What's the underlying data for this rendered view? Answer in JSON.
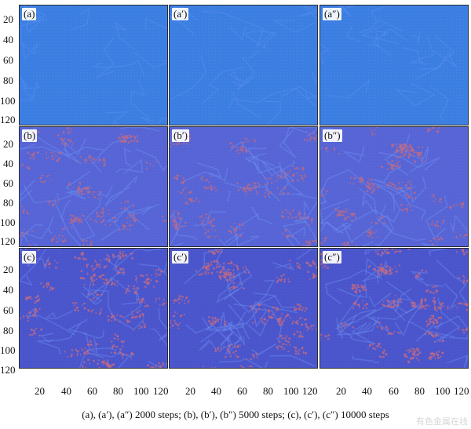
{
  "figure": {
    "panels": [
      {
        "label": "(a)",
        "row": 0,
        "col": 0
      },
      {
        "label": "(a′)",
        "row": 0,
        "col": 1
      },
      {
        "label": "(a″)",
        "row": 0,
        "col": 2
      },
      {
        "label": "(b)",
        "row": 1,
        "col": 0
      },
      {
        "label": "(b′)",
        "row": 1,
        "col": 1
      },
      {
        "label": "(b″)",
        "row": 1,
        "col": 2
      },
      {
        "label": "(c)",
        "row": 2,
        "col": 0
      },
      {
        "label": "(c′)",
        "row": 2,
        "col": 1
      },
      {
        "label": "(c″)",
        "row": 2,
        "col": 2
      }
    ],
    "y_ticks": [
      "20",
      "40",
      "60",
      "80",
      "100",
      "120"
    ],
    "x_ticks": [
      "20",
      "40",
      "60",
      "80",
      "100",
      "120"
    ],
    "caption": "(a), (a′), (a″) 2000 steps; (b), (b′), (b″) 5000 steps; (c), (c′), (c″) 10000 steps",
    "watermark": "有色金属在线"
  },
  "colors": {
    "row_a_background": "#3d82e6",
    "row_b_background": "#5a67d9",
    "row_c_background": "#4d56cf",
    "grain_boundary": "#7ba7ff",
    "red_phase": "#d46e7b",
    "text": "#111111",
    "panel_border": "#2b2b2b"
  }
}
